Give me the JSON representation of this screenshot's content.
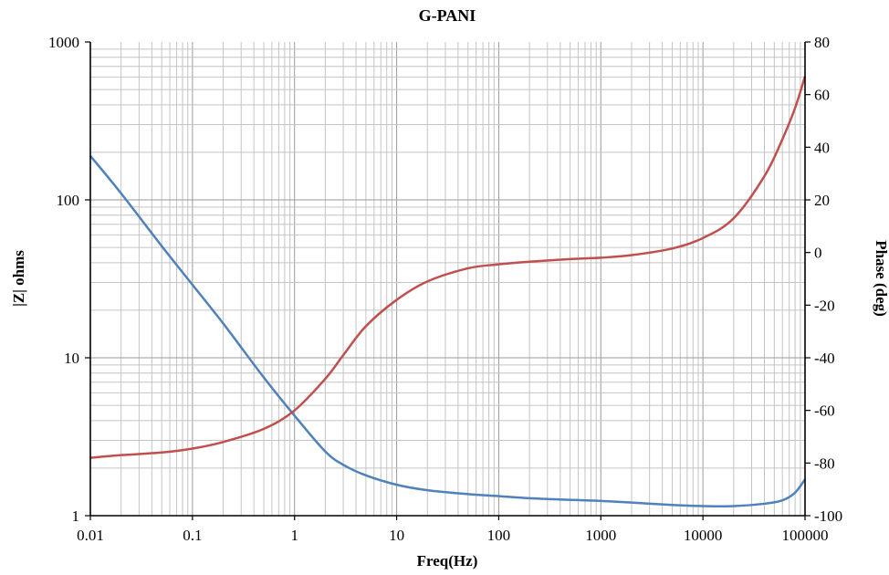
{
  "chart_data": {
    "type": "line",
    "title": "G-PANI",
    "xlabel": "Freq(Hz)",
    "ylabel_left": "|Z| ohms",
    "ylabel_right": "Phase (deg)",
    "x_scale": "log",
    "y_left_scale": "log",
    "xlim": [
      0.01,
      100000
    ],
    "ylim_left": [
      1,
      1000
    ],
    "ylim_right": [
      -100,
      80
    ],
    "x_ticks": [
      "0.01",
      "0.1",
      "1",
      "10",
      "100",
      "1000",
      "10000",
      "100000"
    ],
    "y_left_ticks": [
      "1",
      "10",
      "100",
      "1000"
    ],
    "y_right_ticks": [
      "-100",
      "-80",
      "-60",
      "-40",
      "-20",
      "0",
      "20",
      "40",
      "60",
      "80"
    ],
    "grid": true,
    "series": [
      {
        "axis": "left",
        "color": "#4f81bd",
        "x": [
          0.01,
          0.02,
          0.05,
          0.1,
          0.2,
          0.5,
          1,
          2,
          3,
          5,
          10,
          20,
          50,
          100,
          200,
          500,
          1000,
          2000,
          5000,
          10000,
          20000,
          40000,
          60000,
          80000,
          100000
        ],
        "y": [
          190,
          110,
          51,
          29,
          16.5,
          7.5,
          4.3,
          2.55,
          2.1,
          1.8,
          1.57,
          1.45,
          1.37,
          1.33,
          1.29,
          1.26,
          1.24,
          1.21,
          1.17,
          1.15,
          1.15,
          1.19,
          1.25,
          1.4,
          1.7
        ]
      },
      {
        "axis": "right",
        "color": "#c0504d",
        "x": [
          0.01,
          0.02,
          0.05,
          0.1,
          0.2,
          0.5,
          1,
          2,
          3,
          5,
          10,
          20,
          50,
          100,
          200,
          500,
          1000,
          2000,
          5000,
          10000,
          20000,
          40000,
          60000,
          80000,
          100000
        ],
        "y": [
          -78,
          -77,
          -76,
          -74.5,
          -72,
          -67,
          -60,
          -48,
          -39,
          -28,
          -18,
          -11,
          -6,
          -4.5,
          -3.5,
          -2.5,
          -2,
          -1,
          1.5,
          5.5,
          13,
          29,
          43,
          55,
          67
        ]
      }
    ]
  }
}
